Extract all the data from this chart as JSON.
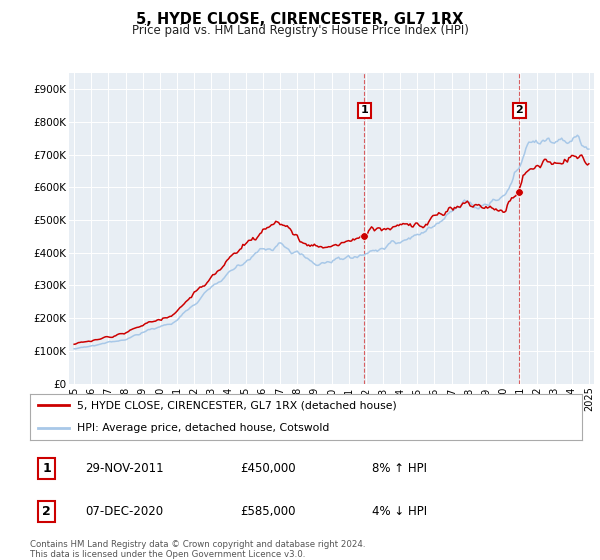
{
  "title": "5, HYDE CLOSE, CIRENCESTER, GL7 1RX",
  "subtitle": "Price paid vs. HM Land Registry's House Price Index (HPI)",
  "legend_line1": "5, HYDE CLOSE, CIRENCESTER, GL7 1RX (detached house)",
  "legend_line2": "HPI: Average price, detached house, Cotswold",
  "annotation1_label": "1",
  "annotation1_date": "29-NOV-2011",
  "annotation1_price": "£450,000",
  "annotation1_hpi": "8% ↑ HPI",
  "annotation1_year": 2011.92,
  "annotation1_value": 450000,
  "annotation2_label": "2",
  "annotation2_date": "07-DEC-2020",
  "annotation2_price": "£585,000",
  "annotation2_hpi": "4% ↓ HPI",
  "annotation2_year": 2020.95,
  "annotation2_value": 585000,
  "footer": "Contains HM Land Registry data © Crown copyright and database right 2024.\nThis data is licensed under the Open Government Licence v3.0.",
  "hpi_color": "#a8c8e8",
  "price_color": "#cc0000",
  "annotation_color": "#cc0000",
  "ylim": [
    0,
    950000
  ],
  "yticks": [
    0,
    100000,
    200000,
    300000,
    400000,
    500000,
    600000,
    700000,
    800000,
    900000
  ],
  "ytick_labels": [
    "£0",
    "£100K",
    "£200K",
    "£300K",
    "£400K",
    "£500K",
    "£600K",
    "£700K",
    "£800K",
    "£900K"
  ],
  "background_color": "#e8eef4",
  "xlim_start": 1994.7,
  "xlim_end": 2025.3
}
